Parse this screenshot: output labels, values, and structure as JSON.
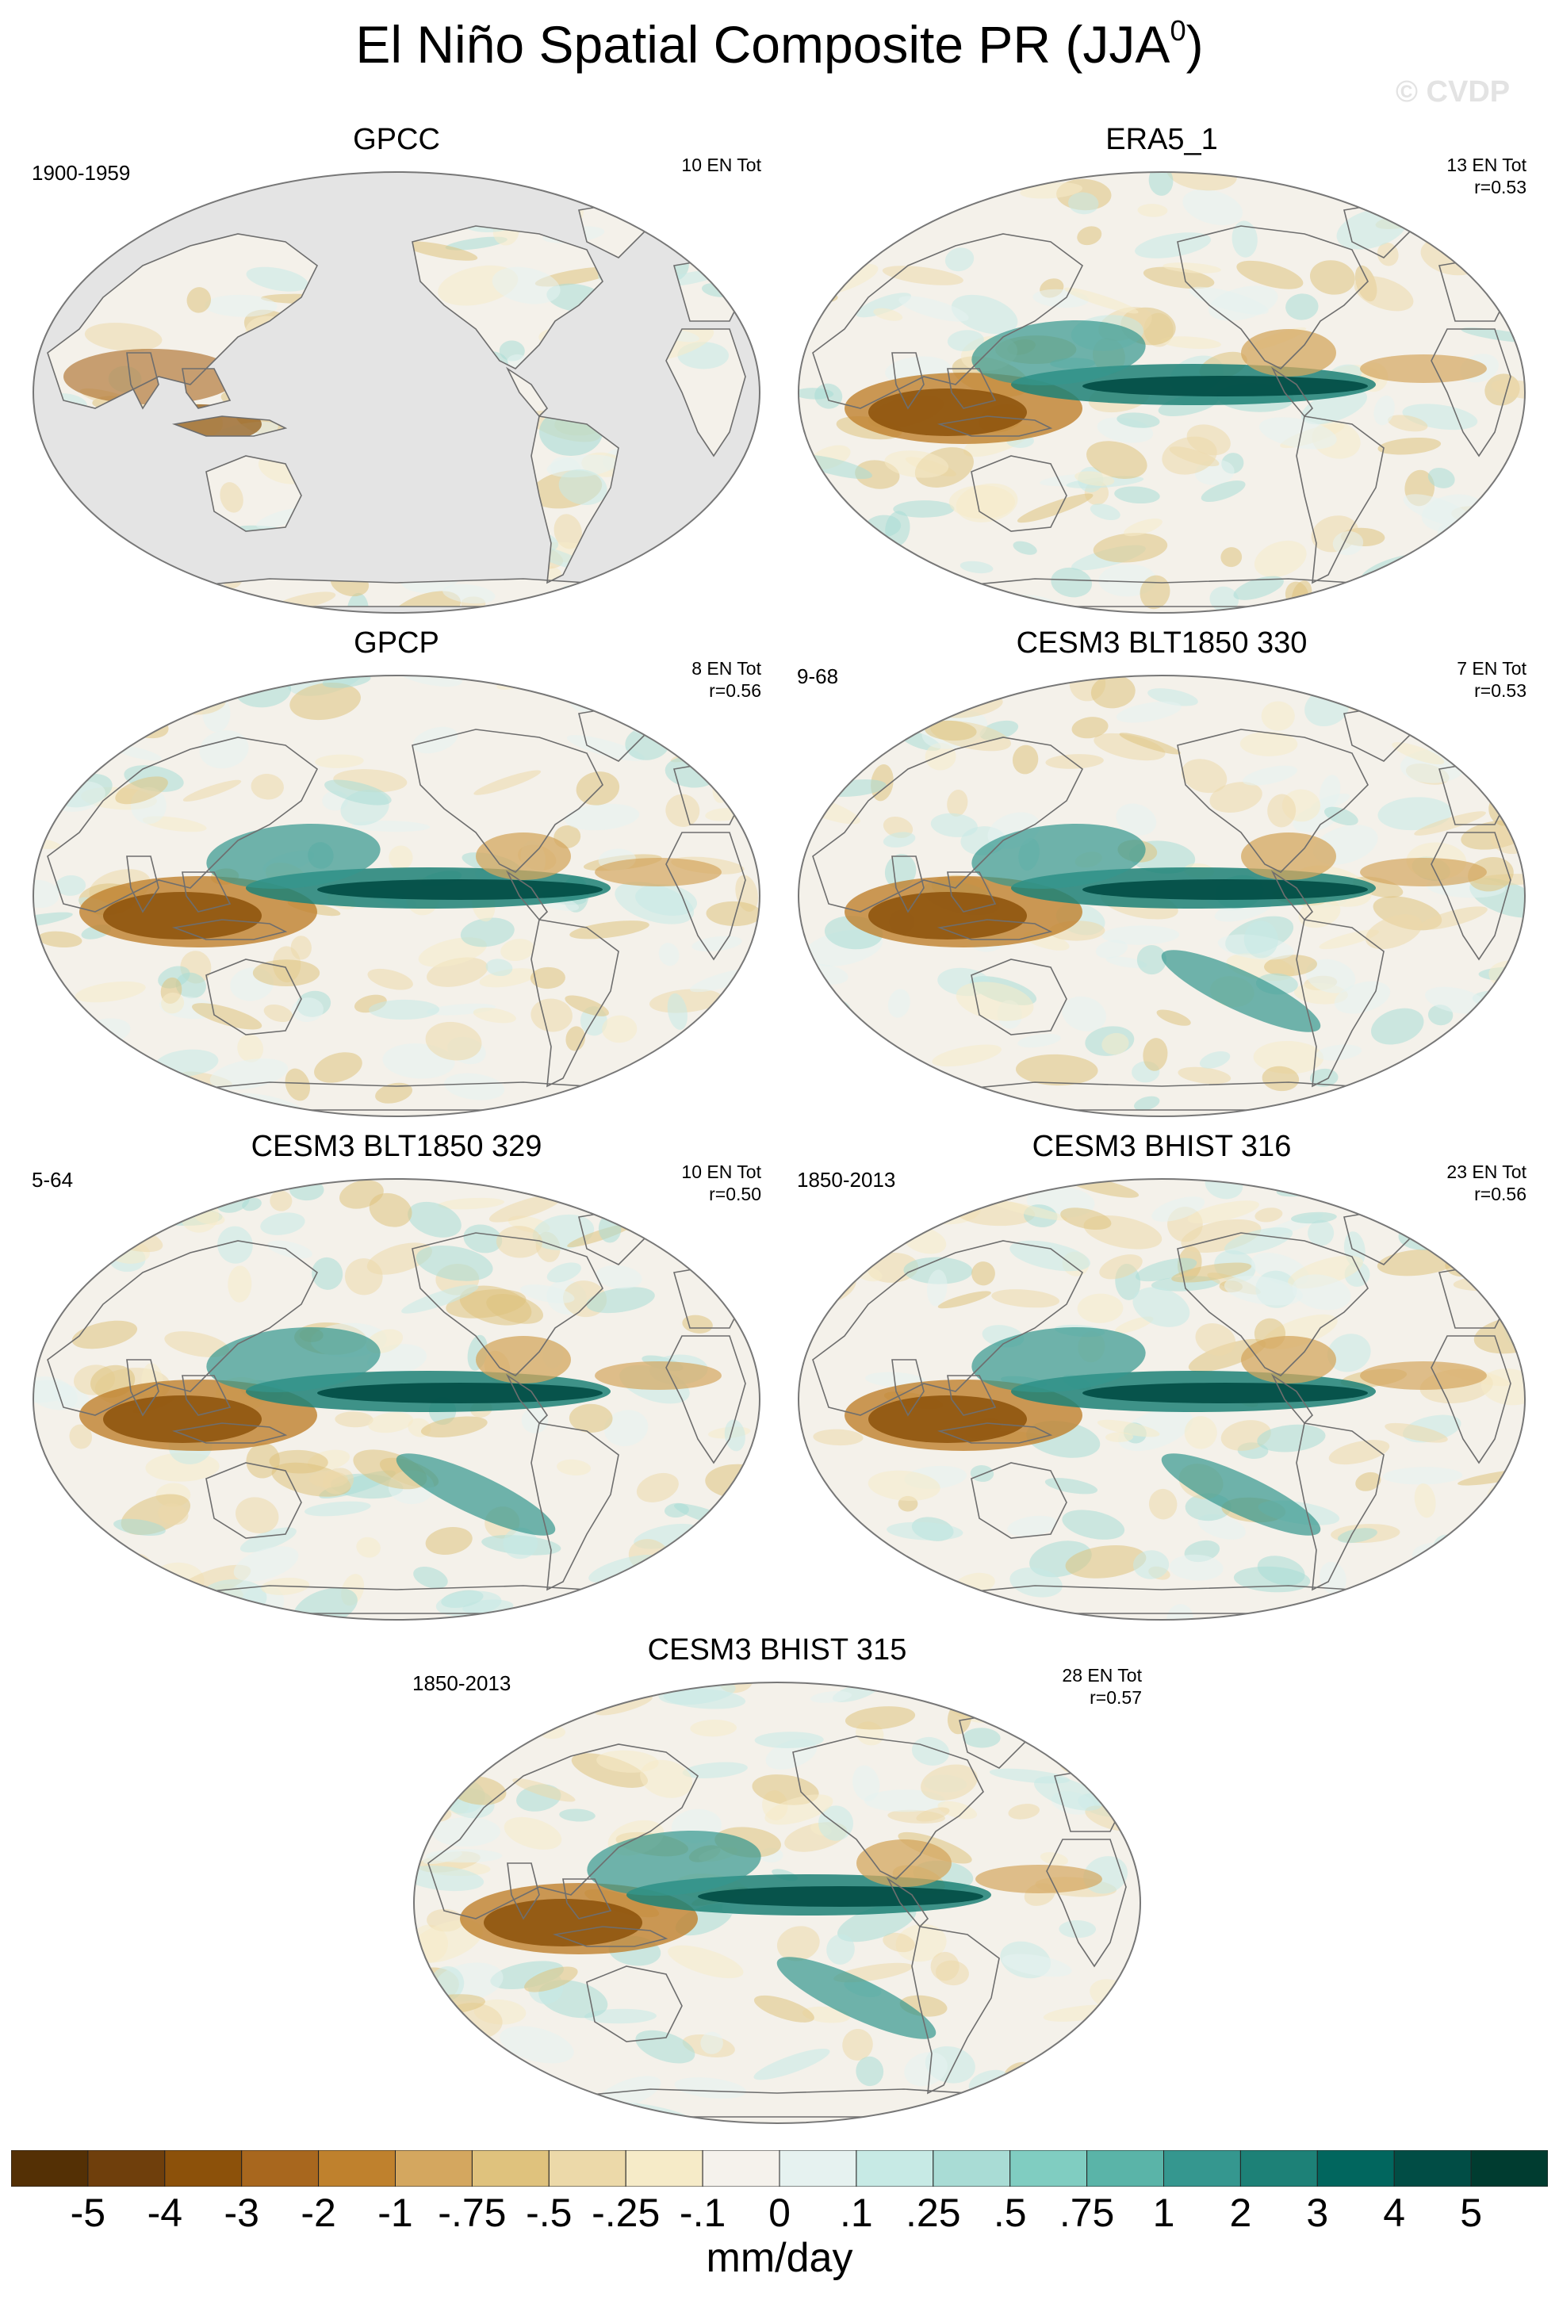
{
  "title": "El Niño Spatial Composite PR (JJA",
  "title_sup": "0",
  "title_close": ")",
  "watermark": "© CVDP",
  "panels": [
    {
      "name": "GPCC",
      "period": "1900-1959",
      "count": "10 EN Tot",
      "corr": "",
      "land_only": true
    },
    {
      "name": "ERA5_1",
      "period": "",
      "count": "13 EN Tot",
      "corr": "r=0.53",
      "land_only": false
    },
    {
      "name": "GPCP",
      "period": "",
      "count": "8 EN Tot",
      "corr": "r=0.56",
      "land_only": false
    },
    {
      "name": "CESM3 BLT1850 330",
      "period": "9-68",
      "count": "7 EN Tot",
      "corr": "r=0.53",
      "land_only": false
    },
    {
      "name": "CESM3 BLT1850 329",
      "period": "5-64",
      "count": "10 EN Tot",
      "corr": "r=0.50",
      "land_only": false
    },
    {
      "name": "CESM3 BHIST 316",
      "period": "1850-2013",
      "count": "23 EN Tot",
      "corr": "r=0.56",
      "land_only": false
    },
    {
      "name": "CESM3 BHIST 315",
      "period": "1850-2013",
      "count": "28 EN Tot",
      "corr": "r=0.57",
      "land_only": false
    }
  ],
  "colorbar": {
    "labels": [
      "-5",
      "-4",
      "-3",
      "-2",
      "-1",
      "-.75",
      "-.5",
      "-.25",
      "-.1",
      "0",
      ".1",
      ".25",
      ".5",
      ".75",
      "1",
      "2",
      "3",
      "4",
      "5"
    ],
    "colors": [
      "#543005",
      "#6f3f0c",
      "#8c510a",
      "#a8671e",
      "#bf812d",
      "#d4a75f",
      "#dfc27d",
      "#ecd9a9",
      "#f6ebc8",
      "#f5f2ec",
      "#e6f2f0",
      "#c7eae5",
      "#a9dcd5",
      "#80cdc1",
      "#5ab4a8",
      "#35978f",
      "#1d8177",
      "#01665e",
      "#014d45",
      "#003c30"
    ],
    "units": "mm/day"
  },
  "map_colors": {
    "ocean_missing": "#e4e4e4",
    "neutral": "#f4f1ea",
    "outline": "#777777",
    "coast": "#6e6e6e"
  }
}
